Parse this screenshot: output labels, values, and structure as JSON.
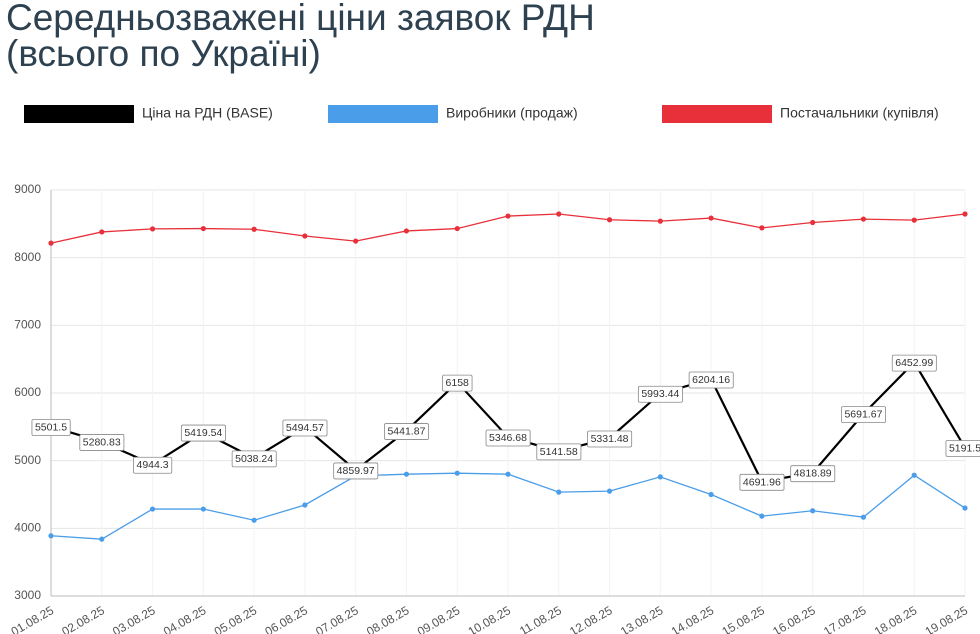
{
  "chart_data": {
    "type": "line",
    "title": "Середньозважені ціни заявок РДН (всього по Україні)",
    "categories": [
      "01.08.25",
      "02.08.25",
      "03.08.25",
      "04.08.25",
      "05.08.25",
      "06.08.25",
      "07.08.25",
      "08.08.25",
      "09.08.25",
      "10.08.25",
      "11.08.25",
      "12.08.25",
      "13.08.25",
      "14.08.25",
      "15.08.25",
      "16.08.25",
      "17.08.25",
      "18.08.25",
      "19.08.25"
    ],
    "series": [
      {
        "name": "Ціна на РДН (BASE)",
        "color": "#000000",
        "values": [
          5501.5,
          5280.83,
          4944.3,
          5419.54,
          5038.24,
          5494.57,
          4859.97,
          5441.87,
          6158,
          5346.68,
          5141.58,
          5331.48,
          5993.44,
          6204.16,
          4691.96,
          4818.89,
          5691.67,
          6452.99,
          5191.5
        ],
        "value_labels": [
          "5501.5",
          "5280.83",
          "4944.3",
          "5419.54",
          "5038.24",
          "5494.57",
          "4859.97",
          "5441.87",
          "6158",
          "5346.68",
          "5141.58",
          "5331.48",
          "5993.44",
          "6204.16",
          "4691.96",
          "4818.89",
          "5691.67",
          "6452.99",
          "5191.5"
        ]
      },
      {
        "name": "Виробники (продаж)",
        "color": "#4a9de8",
        "values": [
          3890,
          3840,
          4285,
          4285,
          4120,
          4345,
          4775,
          4800,
          4815,
          4800,
          4535,
          4550,
          4760,
          4500,
          4180,
          4260,
          4165,
          4785,
          4300
        ]
      },
      {
        "name": "Постачальники (купівля)",
        "color": "#e8303a",
        "values": [
          8215,
          8380,
          8425,
          8430,
          8420,
          8320,
          8245,
          8395,
          8430,
          8615,
          8645,
          8560,
          8540,
          8585,
          8440,
          8520,
          8570,
          8555,
          8645
        ]
      }
    ],
    "ylim": [
      3000,
      9000
    ],
    "yticks": [
      3000,
      4000,
      5000,
      6000,
      7000,
      8000,
      9000
    ],
    "grid": true
  }
}
